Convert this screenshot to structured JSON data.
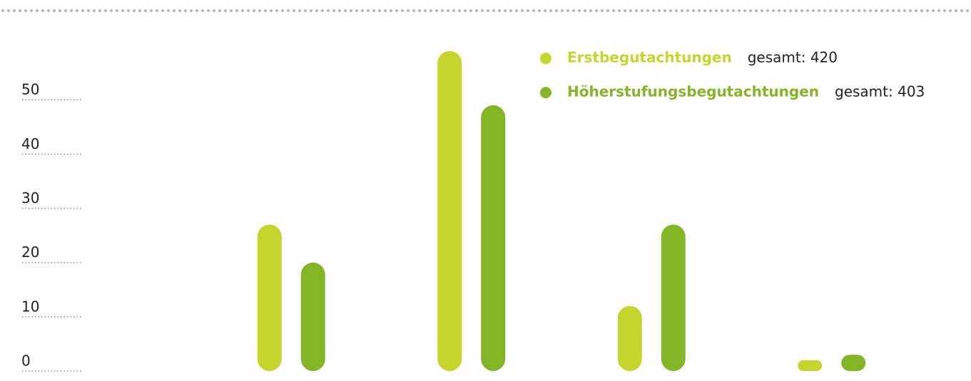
{
  "chart_data": {
    "type": "bar",
    "categories": [
      null,
      null,
      null,
      null
    ],
    "series": [
      {
        "name": "Erstbegutachtungen",
        "note": "gesamt: 420",
        "color": "#c5d52e",
        "values": [
          27,
          59,
          12,
          2
        ]
      },
      {
        "name": "Höherstufungsbegutachtungen",
        "note": "gesamt: 403",
        "color": "#84b526",
        "values": [
          20,
          49,
          27,
          3
        ]
      }
    ],
    "ylim": [
      0,
      60
    ],
    "yticks": [
      0,
      10,
      20,
      30,
      40,
      50
    ],
    "grid": true,
    "legend": "top-right"
  }
}
